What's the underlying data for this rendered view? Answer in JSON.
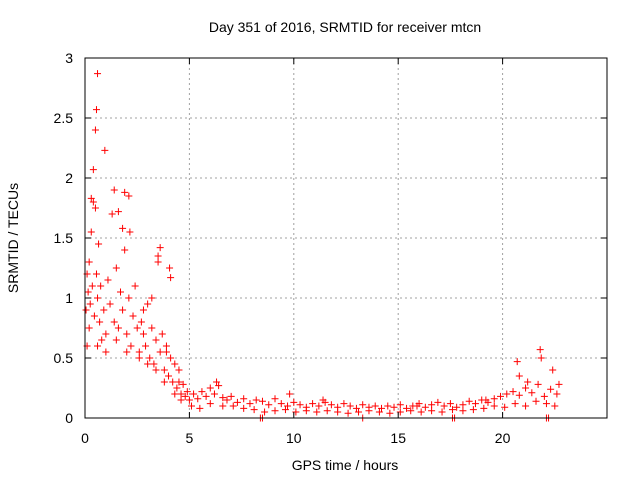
{
  "chart_data": {
    "type": "scatter",
    "title": "Day 351 of 2016, SRMTID for receiver mtcn",
    "xlabel": "GPS time / hours",
    "ylabel": "SRMTID / TECUs",
    "xlim": [
      0,
      25
    ],
    "ylim": [
      0,
      3
    ],
    "xticks": [
      0,
      5,
      10,
      15,
      20
    ],
    "xtick_labels": [
      "0",
      "5",
      "10",
      "15",
      "20"
    ],
    "yticks": [
      0,
      0.5,
      1,
      1.5,
      2,
      2.5,
      3
    ],
    "ytick_labels": [
      "0",
      "0.5",
      "1",
      "1.5",
      "2",
      "2.5",
      "3"
    ],
    "grid": true,
    "marker": "+",
    "series": [
      {
        "name": "SRMTID",
        "color": "#ff0000",
        "x": [
          0.05,
          0.1,
          0.15,
          0.2,
          0.25,
          0.3,
          0.35,
          0.4,
          0.45,
          0.5,
          0.55,
          0.6,
          0.65,
          0.7,
          0.75,
          0.8,
          0.9,
          1.0,
          1.1,
          1.2,
          1.3,
          1.4,
          1.5,
          1.6,
          1.7,
          1.8,
          1.9,
          2.0,
          2.1,
          2.2,
          2.3,
          2.4,
          2.5,
          2.6,
          2.7,
          2.8,
          2.9,
          3.0,
          3.1,
          3.2,
          3.3,
          3.4,
          3.5,
          3.6,
          3.7,
          3.8,
          3.9,
          4.0,
          4.1,
          4.2,
          4.3,
          4.4,
          4.5,
          4.6,
          4.7,
          4.8,
          4.9,
          5.0,
          5.2,
          5.4,
          5.6,
          5.8,
          6.0,
          6.2,
          6.4,
          6.6,
          6.8,
          7.0,
          7.3,
          7.6,
          7.9,
          8.2,
          8.5,
          8.8,
          9.1,
          9.4,
          9.7,
          10.0,
          10.3,
          10.6,
          10.9,
          11.2,
          11.5,
          11.8,
          12.1,
          12.4,
          12.7,
          13.0,
          13.3,
          13.6,
          13.9,
          14.2,
          14.5,
          14.8,
          15.1,
          15.4,
          15.7,
          16.0,
          16.3,
          16.6,
          16.9,
          17.2,
          17.5,
          17.8,
          18.1,
          18.4,
          18.7,
          19.0,
          19.3,
          19.6,
          19.9,
          20.2,
          20.5,
          20.8,
          21.1,
          21.4,
          21.7,
          22.0,
          22.3,
          22.6,
          0.6,
          0.55,
          0.5,
          0.95,
          0.4,
          0.3,
          1.4,
          1.6,
          1.8,
          1.9,
          2.1,
          2.15,
          3.5,
          3.6,
          4.05,
          4.1,
          21.8,
          21.85,
          22.4,
          20.7,
          20.8,
          0.1,
          0.2,
          0.6,
          1.0,
          1.5,
          2.0,
          2.6,
          3.0,
          3.4,
          3.8,
          4.3,
          4.6,
          5.1,
          5.5,
          6.0,
          6.6,
          7.1,
          7.6,
          8.1,
          8.6,
          9.1,
          9.6,
          10.1,
          10.6,
          11.1,
          11.6,
          12.1,
          12.6,
          13.1,
          13.6,
          14.1,
          14.6,
          15.1,
          15.6,
          16.1,
          16.6,
          17.1,
          17.6,
          18.1,
          18.6,
          19.1,
          19.6,
          20.1,
          20.6,
          21.1,
          21.6,
          22.1,
          22.5,
          8.4,
          8.5,
          13.3,
          17.6,
          17.7,
          22.1,
          22.2,
          2.8,
          3.2,
          3.9,
          4.5,
          6.3,
          9.8,
          11.4,
          15.9,
          19.2,
          21.2,
          22.7
        ],
        "y": [
          0.9,
          1.2,
          1.05,
          1.3,
          0.95,
          1.55,
          1.1,
          1.8,
          0.85,
          1.75,
          1.2,
          1.0,
          1.45,
          0.8,
          1.1,
          0.65,
          0.9,
          0.7,
          1.15,
          0.95,
          1.7,
          0.8,
          1.25,
          0.75,
          1.05,
          0.9,
          1.4,
          0.7,
          1.0,
          0.6,
          0.85,
          1.1,
          0.75,
          0.55,
          0.8,
          0.7,
          0.6,
          0.95,
          0.5,
          0.75,
          0.45,
          0.65,
          1.3,
          0.55,
          0.7,
          0.4,
          0.6,
          0.35,
          0.5,
          0.3,
          0.45,
          0.25,
          0.3,
          0.2,
          0.28,
          0.18,
          0.22,
          0.15,
          0.2,
          0.16,
          0.22,
          0.18,
          0.25,
          0.2,
          0.27,
          0.17,
          0.15,
          0.18,
          0.13,
          0.16,
          0.12,
          0.15,
          0.14,
          0.11,
          0.16,
          0.12,
          0.1,
          0.13,
          0.11,
          0.09,
          0.12,
          0.1,
          0.13,
          0.11,
          0.09,
          0.12,
          0.1,
          0.08,
          0.11,
          0.09,
          0.1,
          0.08,
          0.1,
          0.09,
          0.11,
          0.08,
          0.1,
          0.12,
          0.09,
          0.11,
          0.13,
          0.1,
          0.12,
          0.09,
          0.11,
          0.14,
          0.12,
          0.15,
          0.13,
          0.16,
          0.18,
          0.2,
          0.22,
          0.19,
          0.25,
          0.21,
          0.28,
          0.18,
          0.24,
          0.2,
          2.87,
          2.57,
          2.4,
          2.23,
          2.07,
          1.83,
          1.9,
          1.72,
          1.58,
          1.88,
          1.85,
          1.55,
          1.35,
          1.42,
          1.25,
          1.17,
          0.57,
          0.5,
          0.4,
          0.47,
          0.35,
          0.6,
          0.75,
          0.6,
          0.55,
          0.65,
          0.55,
          0.5,
          0.45,
          0.4,
          0.3,
          0.2,
          0.15,
          0.1,
          0.08,
          0.12,
          0.1,
          0.1,
          0.08,
          0.07,
          0.05,
          0.06,
          0.07,
          0.05,
          0.06,
          0.05,
          0.06,
          0.05,
          0.04,
          0.05,
          0.06,
          0.05,
          0.04,
          0.05,
          0.06,
          0.05,
          0.06,
          0.05,
          0.07,
          0.06,
          0.07,
          0.08,
          0.1,
          0.09,
          0.12,
          0.1,
          0.14,
          0.12,
          0.1,
          0.0,
          0.0,
          0.0,
          0.0,
          0.0,
          0.0,
          0.0,
          0.9,
          1.0,
          0.55,
          0.4,
          0.3,
          0.2,
          0.15,
          0.1,
          0.15,
          0.3,
          0.28
        ]
      }
    ]
  }
}
